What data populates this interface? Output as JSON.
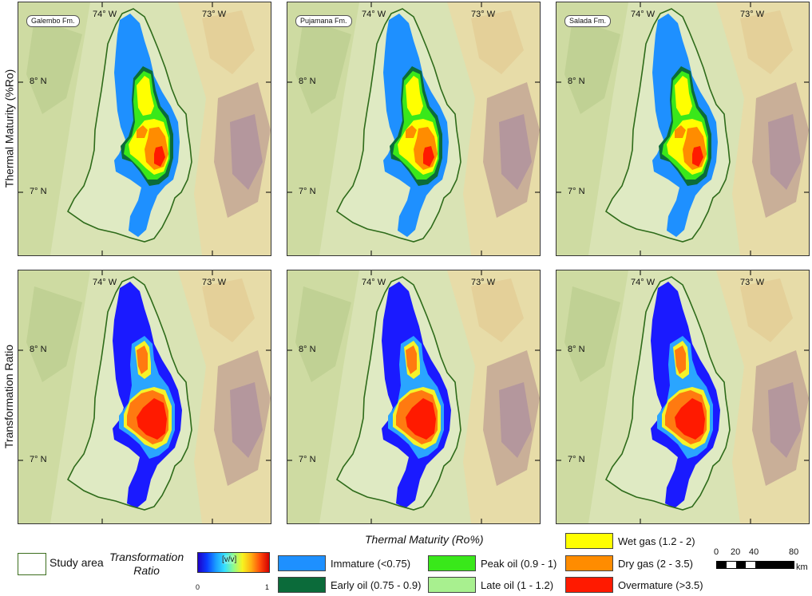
{
  "row_labels": [
    "Thermal Maturity (%Ro)",
    "Transformation Ratio"
  ],
  "panels": [
    {
      "formation": "Galembo Fm."
    },
    {
      "formation": "Pujamana Fm."
    },
    {
      "formation": "Salada Fm."
    }
  ],
  "axes": {
    "lon_labels": [
      "74° W",
      "73° W"
    ],
    "lat_labels": [
      "8° N",
      "7° N"
    ]
  },
  "legend": {
    "study_area": "Study area",
    "thermal_title": "Thermal Maturity (Ro%)",
    "classes": [
      {
        "label": "Immature (<0.75)",
        "color": "#1e90ff"
      },
      {
        "label": "Early oil (0.75 - 0.9)",
        "color": "#0b6b3a"
      },
      {
        "label": "Peak oil (0.9 - 1)",
        "color": "#39e81a"
      },
      {
        "label": "Late oil (1 - 1.2)",
        "color": "#a8f08f"
      },
      {
        "label": "Wet gas (1.2 - 2)",
        "color": "#ffff00"
      },
      {
        "label": "Dry gas (2 - 3.5)",
        "color": "#ff8c00"
      },
      {
        "label": "Overmature (>3.5)",
        "color": "#ff1a00"
      }
    ],
    "transformation": {
      "title_line1": "Transformation",
      "title_line2": "Ratio",
      "unit": "[v/v]",
      "min": "0",
      "max": "1"
    },
    "scale_labels": [
      "0",
      "20",
      "40",
      "80"
    ],
    "scale_unit": "km"
  }
}
